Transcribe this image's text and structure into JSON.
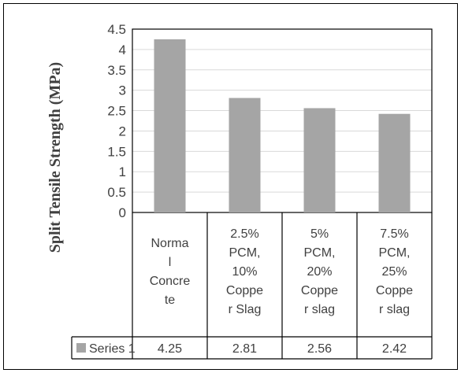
{
  "chart_data": {
    "type": "bar",
    "title": "",
    "xlabel": "",
    "ylabel": "Split Tensile Strength (MPa)",
    "ylim": [
      0,
      4.5
    ],
    "yticks": [
      "0",
      "0.5",
      "1",
      "1.5",
      "2",
      "2.5",
      "3",
      "3.5",
      "4",
      "4.5"
    ],
    "ytick_values": [
      0,
      0.5,
      1,
      1.5,
      2,
      2.5,
      3,
      3.5,
      4,
      4.5
    ],
    "grid": true,
    "legend": "data-table",
    "categories": [
      [
        "Norma",
        "l",
        "Concre",
        "te"
      ],
      [
        "2.5%",
        "PCM,",
        "10%",
        "Coppe",
        "r Slag"
      ],
      [
        "5%",
        "PCM,",
        "20%",
        "Coppe",
        "r slag"
      ],
      [
        "7.5%",
        "PCM,",
        "25%",
        "Coppe",
        "r slag"
      ]
    ],
    "series": [
      {
        "name": "Series 1",
        "values": [
          4.25,
          2.81,
          2.56,
          2.42
        ],
        "color": "#a5a5a5"
      }
    ],
    "table_values": [
      "4.25",
      "2.81",
      "2.56",
      "2.42"
    ]
  }
}
